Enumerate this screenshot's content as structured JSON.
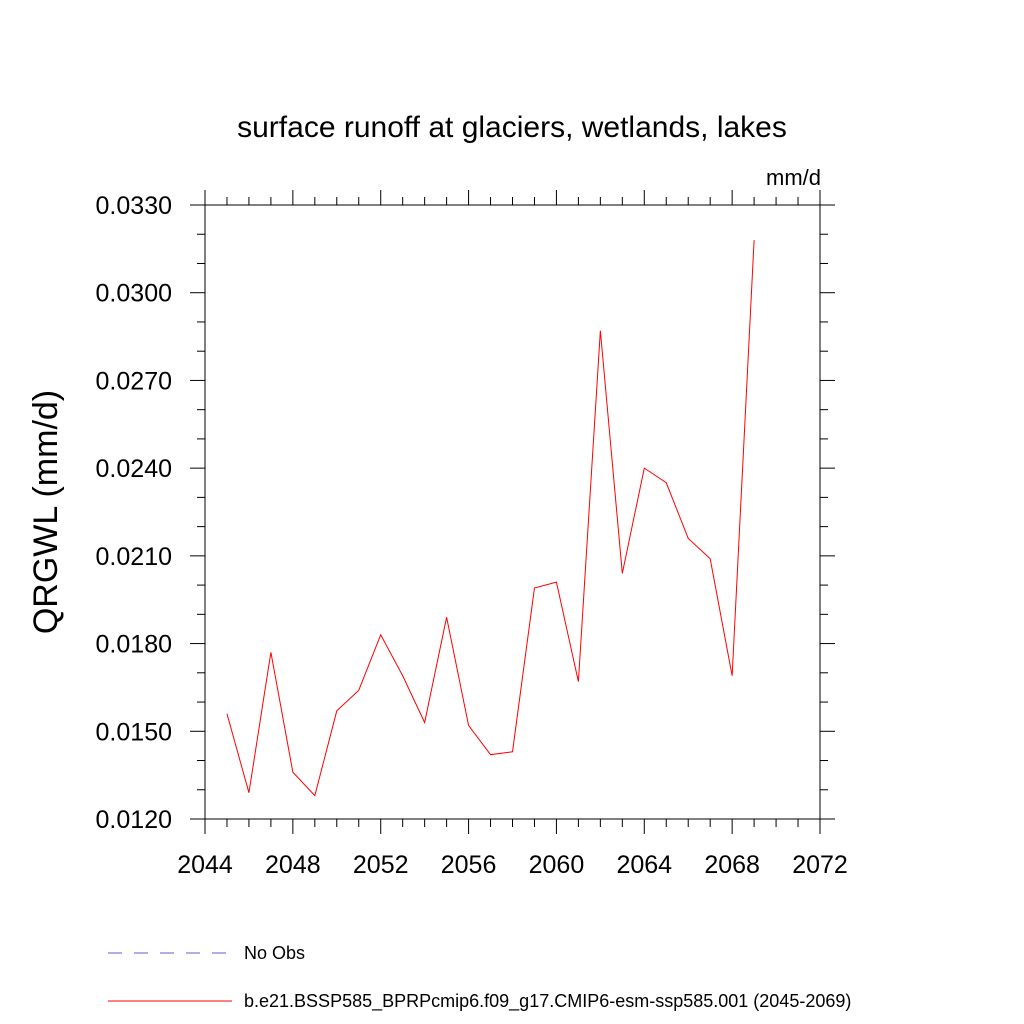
{
  "chart_data": {
    "type": "line",
    "title": "surface runoff at glaciers, wetlands, lakes",
    "units_label": "mm/d",
    "xlabel": "",
    "ylabel": "QRGWL  (mm/d)",
    "xlim": [
      2044,
      2072
    ],
    "ylim": [
      0.012,
      0.033
    ],
    "x_ticks": [
      "2044",
      "2048",
      "2052",
      "2056",
      "2060",
      "2064",
      "2068",
      "2072"
    ],
    "y_ticks": [
      "0.0120",
      "0.0150",
      "0.0180",
      "0.0210",
      "0.0240",
      "0.0270",
      "0.0300",
      "0.0330"
    ],
    "grid": false,
    "legend_position": "bottom",
    "series": [
      {
        "name": "b.e21.BSSP585_BPRPcmip6.f09_g17.CMIP6-esm-ssp585.001 (2045-2069)",
        "color": "#ff0000",
        "style": "solid",
        "x": [
          2045,
          2046,
          2047,
          2048,
          2049,
          2050,
          2051,
          2052,
          2053,
          2054,
          2055,
          2056,
          2057,
          2058,
          2059,
          2060,
          2061,
          2062,
          2063,
          2064,
          2065,
          2066,
          2067,
          2068,
          2069
        ],
        "values": [
          0.0156,
          0.0129,
          0.0177,
          0.0136,
          0.0128,
          0.0157,
          0.0164,
          0.0183,
          0.0169,
          0.0153,
          0.0189,
          0.0152,
          0.0142,
          0.0143,
          0.0199,
          0.0201,
          0.0167,
          0.0287,
          0.0204,
          0.024,
          0.0235,
          0.0216,
          0.0209,
          0.0169,
          0.0318
        ]
      }
    ],
    "legend_entries": [
      {
        "label": "No Obs",
        "color": "#6a5acd",
        "style": "dashed"
      },
      {
        "label": "b.e21.BSSP585_BPRPcmip6.f09_g17.CMIP6-esm-ssp585.001 (2045-2069)",
        "color": "#ff0000",
        "style": "solid"
      }
    ]
  }
}
